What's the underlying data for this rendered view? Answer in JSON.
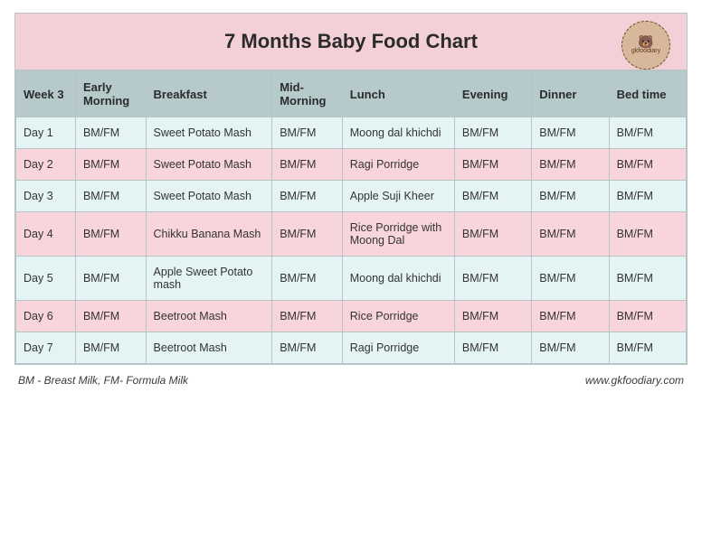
{
  "title": "7 Months Baby Food Chart",
  "logo": {
    "icon": "🐻",
    "text": "gkfoodiary"
  },
  "table": {
    "week_label": "Week 3",
    "columns": [
      "Early Morning",
      "Breakfast",
      "Mid-Morning",
      "Lunch",
      "Evening",
      "Dinner",
      "Bed time"
    ],
    "rows": [
      {
        "day": "Day 1",
        "cells": [
          "BM/FM",
          "Sweet Potato Mash",
          "BM/FM",
          "Moong dal khichdi",
          "BM/FM",
          "BM/FM",
          "BM/FM"
        ]
      },
      {
        "day": "Day 2",
        "cells": [
          "BM/FM",
          "Sweet Potato Mash",
          "BM/FM",
          "Ragi Porridge",
          "BM/FM",
          "BM/FM",
          "BM/FM"
        ]
      },
      {
        "day": "Day 3",
        "cells": [
          "BM/FM",
          "Sweet Potato Mash",
          "BM/FM",
          "Apple Suji Kheer",
          "BM/FM",
          "BM/FM",
          "BM/FM"
        ]
      },
      {
        "day": "Day 4",
        "cells": [
          "BM/FM",
          "Chikku Banana Mash",
          "BM/FM",
          "Rice Porridge with Moong Dal",
          "BM/FM",
          "BM/FM",
          "BM/FM"
        ]
      },
      {
        "day": "Day 5",
        "cells": [
          "BM/FM",
          "Apple Sweet Potato mash",
          "BM/FM",
          "Moong dal khichdi",
          "BM/FM",
          "BM/FM",
          "BM/FM"
        ]
      },
      {
        "day": "Day 6",
        "cells": [
          "BM/FM",
          "Beetroot Mash",
          "BM/FM",
          "Rice Porridge",
          "BM/FM",
          "BM/FM",
          "BM/FM"
        ]
      },
      {
        "day": "Day 7",
        "cells": [
          "BM/FM",
          "Beetroot Mash",
          "BM/FM",
          "Ragi Porridge",
          "BM/FM",
          "BM/FM",
          "BM/FM"
        ]
      }
    ]
  },
  "footer": {
    "legend": "BM - Breast Milk, FM- Formula Milk",
    "site": "www.gkfoodiary.com"
  },
  "colors": {
    "title_bg": "#f3d0d7",
    "header_bg": "#b6cacb",
    "row_odd_bg": "#e4f4f5",
    "row_even_bg": "#f8d5dc",
    "border": "#b8c4c4",
    "logo_bg": "#d8b89a",
    "text": "#2b2b2b"
  }
}
